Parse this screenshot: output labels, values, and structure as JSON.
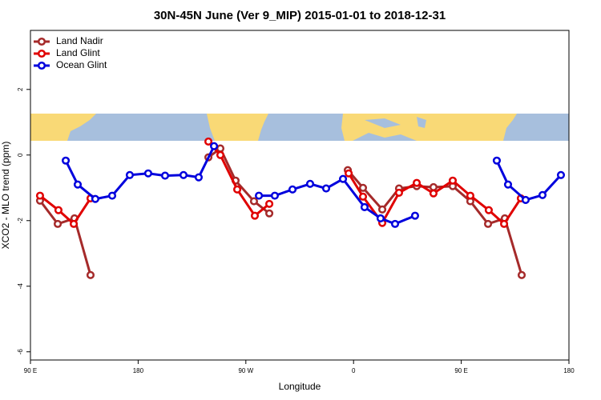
{
  "chart_data": {
    "type": "line",
    "title": "30N-45N June (Ver 9_MIP)   2015-01-01 to 2018-12-31",
    "xlabel": "Longitude",
    "ylabel": "XCO2 - MLO trend (ppm)",
    "xlim": [
      90,
      540
    ],
    "ylim": [
      -6.25,
      3.8
    ],
    "xticks": [
      {
        "value": 90,
        "label": "90 E"
      },
      {
        "value": 180,
        "label": "180"
      },
      {
        "value": 270,
        "label": "90 W"
      },
      {
        "value": 360,
        "label": "0"
      },
      {
        "value": 450,
        "label": "90 E"
      },
      {
        "value": 540,
        "label": "180"
      }
    ],
    "yticks": [
      -6,
      -4,
      -2,
      0,
      2
    ],
    "legend": "top-left",
    "series": [
      {
        "name": "Land Nadir",
        "color": "#a52a2a",
        "x": [
          98.0,
          112.8,
          126.8,
          140.2,
          null,
          238.7,
          248.7,
          261.4,
          276.8,
          289.6,
          null,
          355.2,
          367.9,
          384.0,
          398.0,
          412.8,
          426.8,
          442.9,
          457.6,
          472.4,
          486.4,
          500.5
        ],
        "values": [
          -1.39,
          -2.1,
          -1.93,
          -3.66,
          null,
          -0.07,
          0.2,
          -0.78,
          -1.41,
          -1.78,
          null,
          -0.46,
          -1.0,
          -1.66,
          -1.02,
          -0.95,
          -0.98,
          -0.95,
          -1.41,
          -2.1,
          -1.93,
          -3.66
        ]
      },
      {
        "name": "Land Glint",
        "color": "#e00000",
        "x": [
          98.0,
          113.4,
          126.2,
          140.2,
          null,
          238.7,
          248.7,
          262.8,
          277.5,
          289.6,
          null,
          355.9,
          367.9,
          384.0,
          398.0,
          412.8,
          426.8,
          442.9,
          457.6,
          473.0,
          485.8,
          499.8
        ],
        "values": [
          -1.24,
          -1.68,
          -2.1,
          -1.32,
          null,
          0.41,
          0.0,
          -1.05,
          -1.85,
          -1.49,
          null,
          -0.56,
          -1.27,
          -2.07,
          -1.15,
          -0.85,
          -1.17,
          -0.78,
          -1.24,
          -1.68,
          -2.1,
          -1.32
        ]
      },
      {
        "name": "Ocean Glint",
        "color": "#0000dd",
        "x": [
          119.5,
          129.5,
          144.2,
          158.3,
          173.0,
          188.4,
          202.5,
          217.9,
          230.6,
          243.4,
          null,
          280.9,
          294.2,
          309.0,
          323.7,
          337.1,
          351.2,
          369.2,
          382.6,
          394.7,
          411.4,
          null,
          479.7,
          489.1,
          503.8,
          517.9,
          533.3
        ],
        "values": [
          -0.17,
          -0.9,
          -1.34,
          -1.24,
          -0.61,
          -0.56,
          -0.63,
          -0.61,
          -0.68,
          0.27,
          null,
          -1.24,
          -1.24,
          -1.05,
          -0.88,
          -1.02,
          -0.73,
          -1.59,
          -1.93,
          -2.1,
          -1.85,
          null,
          -0.17,
          -0.9,
          -1.37,
          -1.22,
          -0.61
        ]
      }
    ]
  }
}
